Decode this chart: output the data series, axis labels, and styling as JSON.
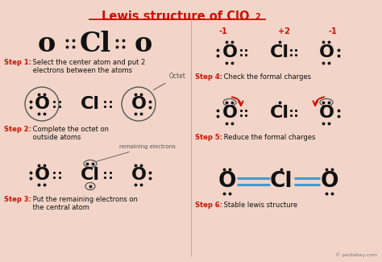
{
  "bg_color": "#f2d5c8",
  "red": "#cc1100",
  "blue": "#4499cc",
  "black": "#111111",
  "gray": "#777777",
  "darkgray": "#555555",
  "title": "Lewis structure of ClO",
  "title_sub": "2",
  "step1_bold": "Step 1:",
  "step1_text": " Select the center atom and put 2\n electrons between the atoms",
  "step2_bold": "Step 2:",
  "step2_text": " Complete the octet on\n outside atoms",
  "step3_bold": "Step 3:",
  "step3_text": " Put the remaining electrons on\n the central atom",
  "step4_bold": "Step 4:",
  "step4_text": " Check the formal charges",
  "step5_bold": "Step 5:",
  "step5_text": " Reduce the formal charges",
  "step6_bold": "Step 6:",
  "step6_text": " Stable lewis structure",
  "credit": "© pediabay.com"
}
